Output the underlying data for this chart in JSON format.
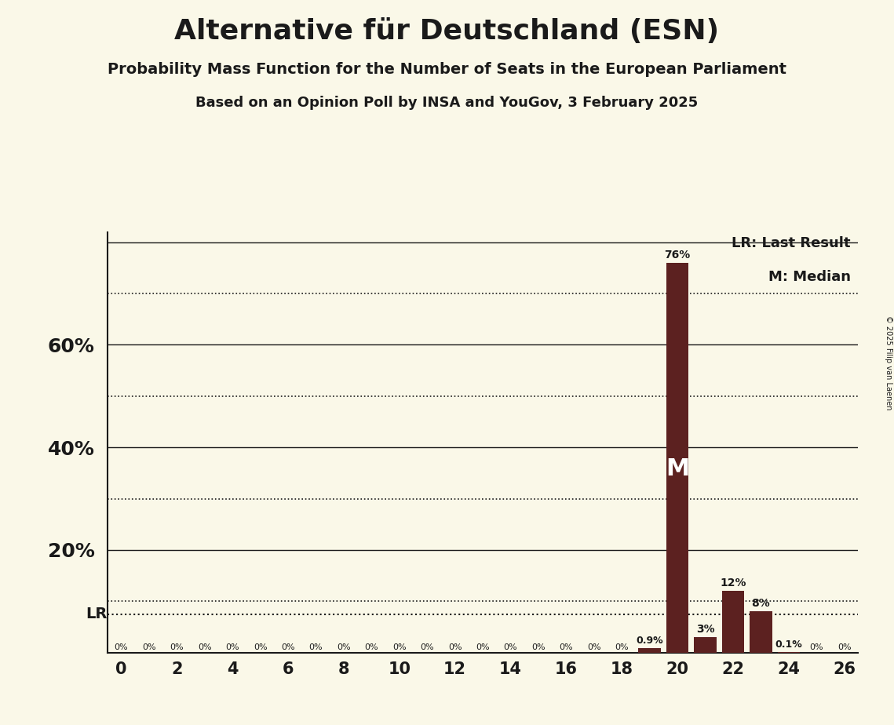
{
  "title": "Alternative für Deutschland (ESN)",
  "subtitle1": "Probability Mass Function for the Number of Seats in the European Parliament",
  "subtitle2": "Based on an Opinion Poll by INSA and YouGov, 3 February 2025",
  "copyright": "© 2025 Filip van Laenen",
  "seats": [
    0,
    1,
    2,
    3,
    4,
    5,
    6,
    7,
    8,
    9,
    10,
    11,
    12,
    13,
    14,
    15,
    16,
    17,
    18,
    19,
    20,
    21,
    22,
    23,
    24,
    25,
    26
  ],
  "probabilities": [
    0.0,
    0.0,
    0.0,
    0.0,
    0.0,
    0.0,
    0.0,
    0.0,
    0.0,
    0.0,
    0.0,
    0.0,
    0.0,
    0.0,
    0.0,
    0.0,
    0.0,
    0.0,
    0.0,
    0.9,
    76.0,
    3.0,
    12.0,
    8.0,
    0.1,
    0.0,
    0.0
  ],
  "bar_color": "#5c2120",
  "background_color": "#faf8e8",
  "text_color": "#1a1a1a",
  "lr_line_value": 7.5,
  "median_seat": 20,
  "median_label": "M",
  "median_y": 38.0,
  "lr_label": "LR",
  "legend_lr": "LR: Last Result",
  "legend_m": "M: Median",
  "solid_lines": [
    20,
    40,
    60,
    80
  ],
  "dotted_lines": [
    10,
    30,
    50,
    70
  ],
  "xlim": [
    -0.5,
    26.5
  ],
  "ylim": [
    0,
    82
  ],
  "bar_labels": {
    "0": "0%",
    "1": "0%",
    "2": "0%",
    "3": "0%",
    "4": "0%",
    "5": "0%",
    "6": "0%",
    "7": "0%",
    "8": "0%",
    "9": "0%",
    "10": "0%",
    "11": "0%",
    "12": "0%",
    "13": "0%",
    "14": "0%",
    "15": "0%",
    "16": "0%",
    "17": "0%",
    "18": "0%",
    "19": "0.9%",
    "20": "76%",
    "21": "3%",
    "22": "12%",
    "23": "8%",
    "24": "0.1%",
    "25": "0%",
    "26": "0%"
  }
}
